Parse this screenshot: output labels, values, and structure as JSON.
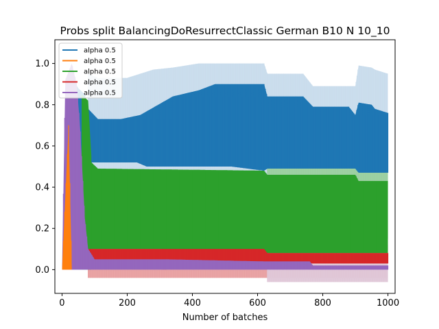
{
  "chart_data": {
    "type": "area",
    "title": "Probs split BalancingDoResurrectClassic German B10 N 10_10",
    "xlabel": "Number of batches",
    "ylabel": "",
    "xlim": [
      -22,
      1022
    ],
    "ylim": [
      -0.115,
      1.115
    ],
    "xticks": [
      0,
      200,
      400,
      600,
      800,
      1000
    ],
    "xtick_labels": [
      "0",
      "200",
      "400",
      "600",
      "800",
      "1000"
    ],
    "yticks": [
      0.0,
      0.2,
      0.4,
      0.6,
      0.8,
      1.0
    ],
    "ytick_labels": [
      "0.0",
      "0.2",
      "0.4",
      "0.6",
      "0.8",
      "1.0"
    ],
    "grid": false,
    "legend_position": "top-left",
    "series": [
      {
        "name": "alpha 0.5",
        "color": "#1f77b4",
        "band_color": "#c9dcec",
        "low": [
          [
            80,
            0.52
          ],
          [
            110,
            0.52
          ],
          [
            230,
            0.52
          ],
          [
            260,
            0.5
          ],
          [
            520,
            0.5
          ],
          [
            620,
            0.48
          ],
          [
            630,
            0.49
          ],
          [
            900,
            0.49
          ],
          [
            910,
            0.47
          ],
          [
            1000,
            0.47
          ]
        ],
        "high": [
          [
            80,
            0.78
          ],
          [
            110,
            0.73
          ],
          [
            180,
            0.73
          ],
          [
            240,
            0.75
          ],
          [
            340,
            0.84
          ],
          [
            420,
            0.87
          ],
          [
            470,
            0.9
          ],
          [
            620,
            0.9
          ],
          [
            630,
            0.84
          ],
          [
            740,
            0.84
          ],
          [
            770,
            0.79
          ],
          [
            880,
            0.79
          ],
          [
            900,
            0.75
          ],
          [
            910,
            0.81
          ],
          [
            950,
            0.8
          ],
          [
            960,
            0.78
          ],
          [
            1000,
            0.76
          ]
        ],
        "band_high": [
          [
            80,
            0.95
          ],
          [
            110,
            0.93
          ],
          [
            200,
            0.93
          ],
          [
            280,
            0.97
          ],
          [
            340,
            0.98
          ],
          [
            420,
            1.0
          ],
          [
            620,
            1.0
          ],
          [
            630,
            0.95
          ],
          [
            740,
            0.95
          ],
          [
            770,
            0.89
          ],
          [
            880,
            0.89
          ],
          [
            900,
            0.89
          ],
          [
            910,
            0.99
          ],
          [
            950,
            0.98
          ],
          [
            960,
            0.97
          ],
          [
            1000,
            0.95
          ]
        ],
        "band_low": [
          [
            80,
            0.4
          ],
          [
            1000,
            0.4
          ]
        ],
        "start_spike": [
          [
            5,
            0.0
          ],
          [
            15,
            0.9
          ],
          [
            30,
            0.93
          ],
          [
            50,
            0.88
          ],
          [
            70,
            0.85
          ],
          [
            80,
            0.78
          ]
        ]
      },
      {
        "name": "alpha 0.5",
        "color": "#ff7f0e",
        "band_color": "#ffd6b3",
        "low": [
          [
            0,
            0.0
          ],
          [
            30,
            0.0
          ]
        ],
        "high": [
          [
            0,
            0.0
          ],
          [
            20,
            0.7
          ],
          [
            30,
            0.0
          ]
        ],
        "band_high": [],
        "band_low": [],
        "start_spike": []
      },
      {
        "name": "alpha 0.5",
        "color": "#2ca02c",
        "band_color": "#9bcfa0",
        "low": [
          [
            90,
            0.1
          ],
          [
            300,
            0.1
          ],
          [
            620,
            0.08
          ],
          [
            630,
            0.08
          ],
          [
            1000,
            0.08
          ]
        ],
        "high": [
          [
            90,
            0.52
          ],
          [
            110,
            0.49
          ],
          [
            620,
            0.48
          ],
          [
            630,
            0.46
          ],
          [
            900,
            0.46
          ],
          [
            910,
            0.43
          ],
          [
            1000,
            0.43
          ]
        ],
        "band_high": [
          [
            630,
            0.5
          ],
          [
            900,
            0.5
          ],
          [
            910,
            0.53
          ],
          [
            1000,
            0.53
          ]
        ],
        "band_low": [
          [
            630,
            0.12
          ],
          [
            900,
            0.12
          ],
          [
            910,
            0.15
          ],
          [
            1000,
            0.15
          ]
        ],
        "start_spike": [
          [
            60,
            0.85
          ],
          [
            80,
            0.82
          ],
          [
            90,
            0.55
          ]
        ]
      },
      {
        "name": "alpha 0.5",
        "color": "#d62728",
        "band_color": "#e8a0a1",
        "low": [
          [
            80,
            0.02
          ],
          [
            320,
            0.0
          ],
          [
            330,
            0.03
          ],
          [
            620,
            0.03
          ],
          [
            630,
            0.03
          ],
          [
            1000,
            0.03
          ]
        ],
        "high": [
          [
            80,
            0.1
          ],
          [
            320,
            0.1
          ],
          [
            330,
            0.1
          ],
          [
            620,
            0.1
          ],
          [
            630,
            0.08
          ],
          [
            760,
            0.08
          ],
          [
            1000,
            0.08
          ]
        ],
        "band_high": [
          [
            80,
            0.14
          ],
          [
            330,
            0.14
          ],
          [
            620,
            0.13
          ],
          [
            1000,
            0.13
          ]
        ],
        "band_low": [
          [
            80,
            -0.04
          ],
          [
            1000,
            -0.04
          ]
        ],
        "start_spike": []
      },
      {
        "name": "alpha 0.5",
        "color": "#9467bd",
        "band_color": "#e0c8d8",
        "low": [
          [
            0,
            0.0
          ],
          [
            1000,
            0.0
          ]
        ],
        "high": [
          [
            0,
            0.0
          ],
          [
            10,
            0.92
          ],
          [
            30,
            1.0
          ],
          [
            45,
            0.9
          ],
          [
            55,
            0.7
          ],
          [
            70,
            0.25
          ],
          [
            80,
            0.1
          ],
          [
            100,
            0.05
          ],
          [
            320,
            0.05
          ],
          [
            620,
            0.04
          ],
          [
            760,
            0.04
          ],
          [
            770,
            0.02
          ],
          [
            1000,
            0.02
          ]
        ],
        "band_high": [
          [
            630,
            0.12
          ],
          [
            1000,
            0.12
          ]
        ],
        "band_low": [
          [
            80,
            -0.06
          ],
          [
            1000,
            -0.06
          ]
        ],
        "start_spike": []
      }
    ]
  }
}
